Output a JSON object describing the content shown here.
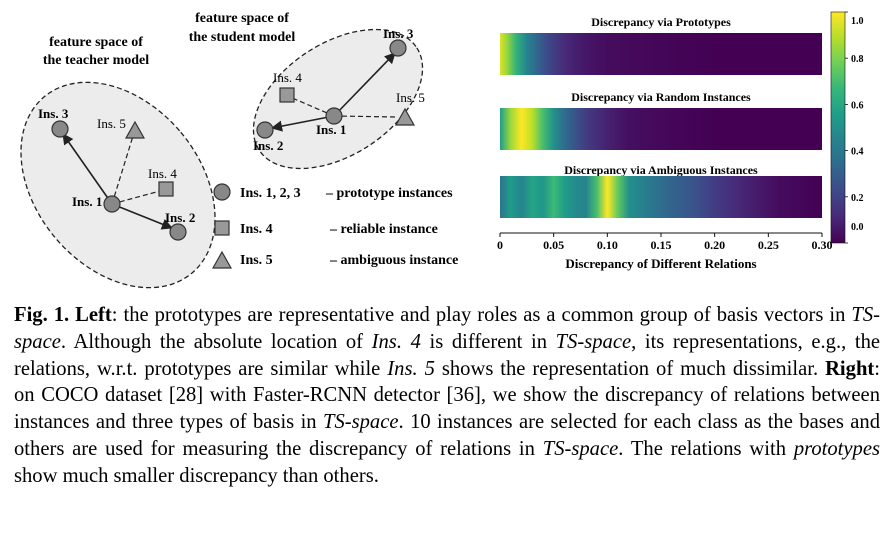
{
  "left": {
    "teacher_title": [
      "feature space of",
      "the teacher model"
    ],
    "student_title": [
      "feature space of",
      "the student model"
    ],
    "teacher_labels": {
      "ins1": "Ins. 1",
      "ins2": "Ins. 2",
      "ins3": "Ins. 3",
      "ins4": "Ins. 4",
      "ins5": "Ins. 5"
    },
    "student_labels": {
      "ins1": "Ins. 1",
      "ins2": "Ins. 2",
      "ins3": "Ins. 3",
      "ins4": "Ins. 4",
      "ins5": "Ins. 5"
    },
    "legend": [
      {
        "shape": "circle",
        "name": "Ins. 1, 2, 3",
        "desc": "– prototype instances"
      },
      {
        "shape": "square",
        "name": "Ins. 4",
        "desc": "– reliable instance"
      },
      {
        "shape": "triangle",
        "name": "Ins. 5",
        "desc": "– ambiguous instance"
      }
    ]
  },
  "chart_data": {
    "type": "heatmap",
    "xlabel": "Discrepancy of Different Relations",
    "xlim": [
      0,
      0.3
    ],
    "xticks": [
      "0",
      "0.05",
      "0.10",
      "0.15",
      "0.20",
      "0.25",
      "0.30"
    ],
    "colorbar": {
      "min": 0.0,
      "max": 1.0,
      "ticks": [
        "1.0",
        "0.8",
        "0.6",
        "0.4",
        "0.2",
        "0.0"
      ],
      "colormap": "viridis"
    },
    "series": [
      {
        "name": "Discrepancy via Prototypes",
        "x": [
          0,
          0.006,
          0.015,
          0.025,
          0.035,
          0.045,
          0.06,
          0.08,
          0.1,
          0.13,
          0.16,
          0.2,
          0.3
        ],
        "density": [
          0.95,
          0.85,
          0.65,
          0.45,
          0.32,
          0.22,
          0.12,
          0.06,
          0.03,
          0.02,
          0.01,
          0.0,
          0.0
        ]
      },
      {
        "name": "Discrepancy via Random Instances",
        "x": [
          0,
          0.01,
          0.02,
          0.03,
          0.04,
          0.05,
          0.06,
          0.08,
          0.1,
          0.12,
          0.15,
          0.2,
          0.3
        ],
        "density": [
          0.55,
          0.85,
          1.0,
          0.9,
          0.7,
          0.5,
          0.35,
          0.18,
          0.09,
          0.04,
          0.02,
          0.0,
          0.0
        ]
      },
      {
        "name": "Discrepancy via Ambiguous Instances",
        "x": [
          0,
          0.01,
          0.02,
          0.03,
          0.04,
          0.05,
          0.06,
          0.07,
          0.08,
          0.09,
          0.1,
          0.11,
          0.12,
          0.14,
          0.16,
          0.18,
          0.2,
          0.22,
          0.24,
          0.26,
          0.3
        ],
        "density": [
          0.38,
          0.55,
          0.45,
          0.58,
          0.52,
          0.68,
          0.55,
          0.48,
          0.45,
          0.7,
          1.0,
          0.75,
          0.5,
          0.4,
          0.32,
          0.26,
          0.18,
          0.12,
          0.07,
          0.03,
          0.0
        ]
      }
    ]
  },
  "caption": {
    "fig_label": "Fig. 1.",
    "left_label": "Left",
    "p1": ": the prototypes are representative and play roles as a common group of basis vectors in ",
    "ts1": "TS-space",
    "p2": ". Although the absolute location of ",
    "ins4": "Ins. 4",
    "p3": " is different in ",
    "ts2": "TS-space",
    "p4": ", its representations, e.g., the relations, w.r.t. prototypes are similar while ",
    "ins5": "Ins. 5",
    "p5": " shows the representation of much dissimilar. ",
    "right_label": "Right",
    "p6": ": on COCO dataset [28] with Faster-RCNN detector [36], we show the discrepancy of relations between instances and three types of basis in ",
    "ts3": "TS-space",
    "p7": ". 10 instances are selected for each class as the bases and others are used for measuring the discrepancy of relations in ",
    "ts4": "TS-space",
    "p8": ". The relations with ",
    "protos": "prototypes",
    "p9": " show much smaller discrepancy than others."
  }
}
